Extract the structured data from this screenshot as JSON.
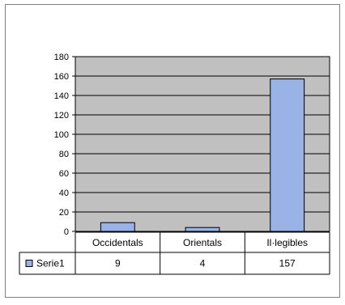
{
  "chart_data": {
    "type": "bar",
    "categories": [
      "Occidentals",
      "Orientals",
      "Il·legibles"
    ],
    "series": [
      {
        "name": "Serie1",
        "values": [
          9,
          4,
          157
        ],
        "color": "#99b3e6"
      }
    ],
    "ylim": [
      0,
      180
    ],
    "yticks": [
      "0",
      "20",
      "40",
      "60",
      "80",
      "100",
      "120",
      "140",
      "160",
      "180"
    ],
    "grid": true,
    "plot_background": "#c0c0c0",
    "data_table": {
      "legend_label": "Serie1",
      "values": [
        "9",
        "4",
        "157"
      ]
    }
  }
}
